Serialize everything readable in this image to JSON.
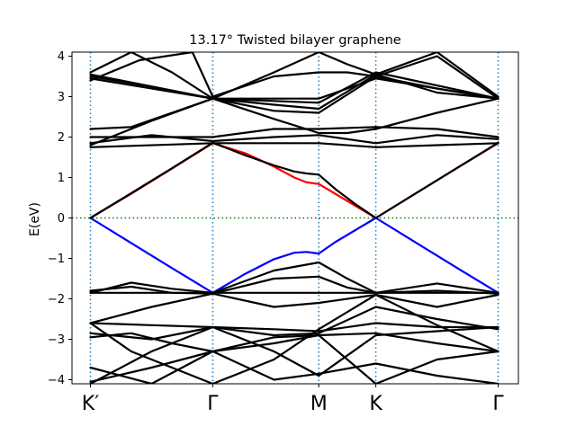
{
  "chart_data": {
    "type": "line",
    "title": "13.17° Twisted bilayer graphene",
    "xlabel": "",
    "ylabel": "E(eV)",
    "xlim": [
      0,
      1.0
    ],
    "ylim": [
      -4.1,
      4.1
    ],
    "yticks": [
      -4,
      -3,
      -2,
      -1,
      0,
      1,
      2,
      3,
      4
    ],
    "ytick_labels": [
      "−4",
      "−3",
      "−2",
      "−1",
      "0",
      "1",
      "2",
      "3",
      "4"
    ],
    "xticks": [
      0.0,
      0.3,
      0.56,
      0.7,
      1.0
    ],
    "xtick_labels": [
      "K′",
      "Γ",
      "M",
      "K",
      "Γ"
    ],
    "fermi_level": 0,
    "colors": {
      "bands": "#000000",
      "highlight_conduction": "#ff0000",
      "highlight_valence": "#0000ff",
      "fermi_line": "#008000",
      "vlines": "#1f77b4"
    },
    "series": [
      {
        "color": "#ff0000",
        "x": [
          0,
          0.1,
          0.2,
          0.3,
          0.38,
          0.45,
          0.5,
          0.53,
          0.56,
          0.6,
          0.65,
          0.7,
          0.8,
          0.9,
          1.0
        ],
        "y": [
          0,
          0.6,
          1.22,
          1.85,
          1.6,
          1.27,
          1.0,
          0.88,
          0.84,
          0.6,
          0.3,
          0,
          0.62,
          1.24,
          1.85
        ]
      },
      {
        "color": "#0000ff",
        "x": [
          0,
          0.1,
          0.2,
          0.3,
          0.38,
          0.45,
          0.5,
          0.53,
          0.56,
          0.6,
          0.65,
          0.7,
          0.8,
          0.9,
          1.0
        ],
        "y": [
          0,
          -0.62,
          -1.24,
          -1.85,
          -1.38,
          -1.02,
          -0.86,
          -0.84,
          -0.88,
          -0.6,
          -0.3,
          0,
          -0.62,
          -1.24,
          -1.85
        ]
      },
      {
        "color": "#000000",
        "x": [
          0,
          0.1,
          0.2,
          0.3,
          0.38,
          0.45,
          0.5,
          0.53,
          0.56,
          0.6,
          0.65,
          0.7,
          0.8,
          0.9,
          1.0
        ],
        "y": [
          0,
          0.61,
          1.23,
          1.86,
          1.55,
          1.3,
          1.15,
          1.1,
          1.07,
          0.72,
          0.34,
          0,
          0.62,
          1.24,
          1.86
        ]
      },
      {
        "color": "#000000",
        "x": [
          0,
          0.3,
          0.56,
          0.7,
          1.0
        ],
        "y": [
          1.75,
          1.85,
          1.85,
          1.75,
          1.85
        ]
      },
      {
        "color": "#000000",
        "x": [
          0,
          0.15,
          0.3,
          0.45,
          0.56,
          0.7,
          0.85,
          1.0
        ],
        "y": [
          1.85,
          2.05,
          1.9,
          2.0,
          2.05,
          1.85,
          2.05,
          1.95
        ]
      },
      {
        "color": "#000000",
        "x": [
          0,
          0.15,
          0.3,
          0.45,
          0.56,
          0.7,
          0.85,
          1.0
        ],
        "y": [
          2.0,
          2.0,
          2.0,
          2.2,
          2.2,
          2.25,
          2.2,
          2.0
        ]
      },
      {
        "color": "#000000",
        "x": [
          0,
          0.1,
          0.2,
          0.3,
          0.45,
          0.56,
          0.63,
          0.7,
          0.85,
          1.0
        ],
        "y": [
          2.2,
          2.25,
          2.6,
          2.95,
          2.45,
          2.1,
          2.1,
          2.2,
          2.6,
          2.95
        ]
      },
      {
        "color": "#000000",
        "x": [
          0,
          0.15,
          0.3,
          0.45,
          0.56,
          0.7,
          0.85,
          1.0
        ],
        "y": [
          1.8,
          2.4,
          2.95,
          2.65,
          2.6,
          3.5,
          3.2,
          2.95
        ]
      },
      {
        "color": "#000000",
        "x": [
          0,
          0.15,
          0.3,
          0.45,
          0.56,
          0.7,
          0.85,
          1.0
        ],
        "y": [
          3.5,
          3.25,
          2.95,
          2.8,
          2.7,
          3.55,
          3.1,
          2.95
        ]
      },
      {
        "color": "#000000",
        "x": [
          0,
          0.3,
          0.56,
          0.7,
          1.0
        ],
        "y": [
          3.45,
          2.95,
          2.95,
          3.45,
          2.95
        ]
      },
      {
        "color": "#000000",
        "x": [
          0,
          0.3,
          0.56,
          0.7,
          1.0
        ],
        "y": [
          3.55,
          2.95,
          2.85,
          3.6,
          2.95
        ]
      },
      {
        "color": "#000000",
        "x": [
          0,
          0.1,
          0.2,
          0.3,
          0.45,
          0.56,
          0.63,
          0.7,
          0.85,
          1.0
        ],
        "y": [
          3.6,
          4.1,
          3.6,
          2.95,
          3.6,
          4.1,
          3.8,
          3.55,
          4.1,
          3.0
        ]
      },
      {
        "color": "#000000",
        "x": [
          0,
          0.12,
          0.25,
          0.3,
          0.45,
          0.56,
          0.63,
          0.7,
          0.85,
          1.0
        ],
        "y": [
          3.4,
          3.9,
          4.1,
          3.0,
          3.5,
          3.6,
          3.6,
          3.5,
          4.0,
          2.95
        ]
      },
      {
        "color": "#000000",
        "x": [
          0,
          0.3,
          0.56,
          0.7,
          1.0
        ],
        "y": [
          -1.85,
          -1.85,
          -1.85,
          -1.85,
          -1.85
        ]
      },
      {
        "color": "#000000",
        "x": [
          0,
          0.1,
          0.2,
          0.3,
          0.45,
          0.56,
          0.63,
          0.7,
          0.85,
          1.0
        ],
        "y": [
          -1.85,
          -1.6,
          -1.75,
          -1.85,
          -1.3,
          -1.1,
          -1.5,
          -1.85,
          -1.62,
          -1.85
        ]
      },
      {
        "color": "#000000",
        "x": [
          0,
          0.1,
          0.2,
          0.3,
          0.45,
          0.56,
          0.63,
          0.7,
          0.85,
          1.0
        ],
        "y": [
          -1.8,
          -1.7,
          -1.85,
          -1.87,
          -1.5,
          -1.45,
          -1.72,
          -1.85,
          -1.8,
          -1.87
        ]
      },
      {
        "color": "#000000",
        "x": [
          0,
          0.15,
          0.3,
          0.45,
          0.56,
          0.7,
          0.85,
          1.0
        ],
        "y": [
          -2.6,
          -2.2,
          -1.87,
          -2.2,
          -2.1,
          -1.9,
          -2.2,
          -1.9
        ]
      },
      {
        "color": "#000000",
        "x": [
          0,
          0.15,
          0.3,
          0.45,
          0.56,
          0.7,
          0.85,
          1.0
        ],
        "y": [
          -2.6,
          -2.65,
          -2.7,
          -2.75,
          -2.8,
          -2.6,
          -2.7,
          -2.7
        ]
      },
      {
        "color": "#000000",
        "x": [
          0,
          0.15,
          0.3,
          0.45,
          0.56,
          0.7,
          0.85,
          1.0
        ],
        "y": [
          -2.85,
          -3.0,
          -2.7,
          -2.9,
          -2.85,
          -2.2,
          -2.5,
          -2.75
        ]
      },
      {
        "color": "#000000",
        "x": [
          0,
          0.1,
          0.2,
          0.3,
          0.45,
          0.56,
          0.7,
          0.85,
          1.0
        ],
        "y": [
          -2.95,
          -2.85,
          -3.1,
          -3.3,
          -3.1,
          -2.9,
          -2.85,
          -3.1,
          -3.3
        ]
      },
      {
        "color": "#000000",
        "x": [
          0,
          0.15,
          0.3,
          0.45,
          0.56,
          0.7,
          0.85,
          1.0
        ],
        "y": [
          -4.1,
          -3.3,
          -2.7,
          -3.3,
          -3.9,
          -2.9,
          -2.8,
          -2.7
        ]
      },
      {
        "color": "#000000",
        "x": [
          0,
          0.15,
          0.3,
          0.45,
          0.56,
          0.7,
          0.85,
          1.0
        ],
        "y": [
          -4.05,
          -3.7,
          -3.3,
          -2.95,
          -2.9,
          -4.1,
          -3.5,
          -3.3
        ]
      },
      {
        "color": "#000000",
        "x": [
          0,
          0.15,
          0.3,
          0.45,
          0.56,
          0.7,
          0.85,
          1.0
        ],
        "y": [
          -3.7,
          -4.1,
          -3.3,
          -4.0,
          -3.85,
          -3.6,
          -3.9,
          -4.1
        ]
      },
      {
        "color": "#000000",
        "x": [
          0,
          0.1,
          0.3,
          0.45,
          0.56,
          0.7,
          0.85,
          1.0
        ],
        "y": [
          -2.6,
          -3.3,
          -4.1,
          -3.5,
          -2.75,
          -1.9,
          -2.65,
          -3.3
        ]
      }
    ]
  }
}
